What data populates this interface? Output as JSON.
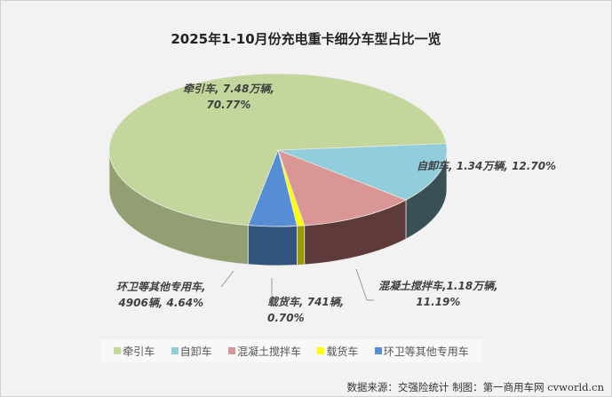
{
  "chart_data": {
    "type": "pie",
    "title": "2025年1-10月份充电重卡细分车型占比一览",
    "slices": [
      {
        "name": "自卸车",
        "value_text": "1.34万辆",
        "value": 13400,
        "percent": 12.7,
        "color": "#92cddc",
        "side": "#3a5057"
      },
      {
        "name": "混凝土搅拌车",
        "value_text": "1.18万辆",
        "value": 11800,
        "percent": 11.19,
        "color": "#d99694",
        "side": "#5e3a3a"
      },
      {
        "name": "载货车",
        "value_text": "741辆",
        "value": 741,
        "percent": 0.7,
        "color": "#ffff00",
        "side": "#999900"
      },
      {
        "name": "环卫等其他专用车",
        "value_text": "4906辆",
        "value": 4906,
        "percent": 4.64,
        "color": "#558ed5",
        "side": "#31547f"
      },
      {
        "name": "牵引车",
        "value_text": "7.48万辆",
        "value": 74800,
        "percent": 70.77,
        "color": "#c3d69b",
        "side": "#929f72"
      }
    ],
    "labels": {
      "tractor": [
        "牵引车, 7.48万辆,",
        "70.77%"
      ],
      "dump": [
        "自卸车, 1.34万辆, 12.70%"
      ],
      "mixer": [
        "混凝土搅拌车,1.18万辆,",
        "11.19%"
      ],
      "cargo": [
        "载货车, 741辆,",
        "0.70%"
      ],
      "sanitation": [
        "环卫等其他专用车,",
        "4906辆, 4.64%"
      ]
    },
    "legend": {
      "placement": "bottom",
      "items": [
        "牵引车",
        "自卸车",
        "混凝土搅拌车",
        "载货车",
        "环卫等其他专用车"
      ]
    },
    "source": "数据来源：交强险统计 制图：第一商用车网 cvworld.cn"
  }
}
